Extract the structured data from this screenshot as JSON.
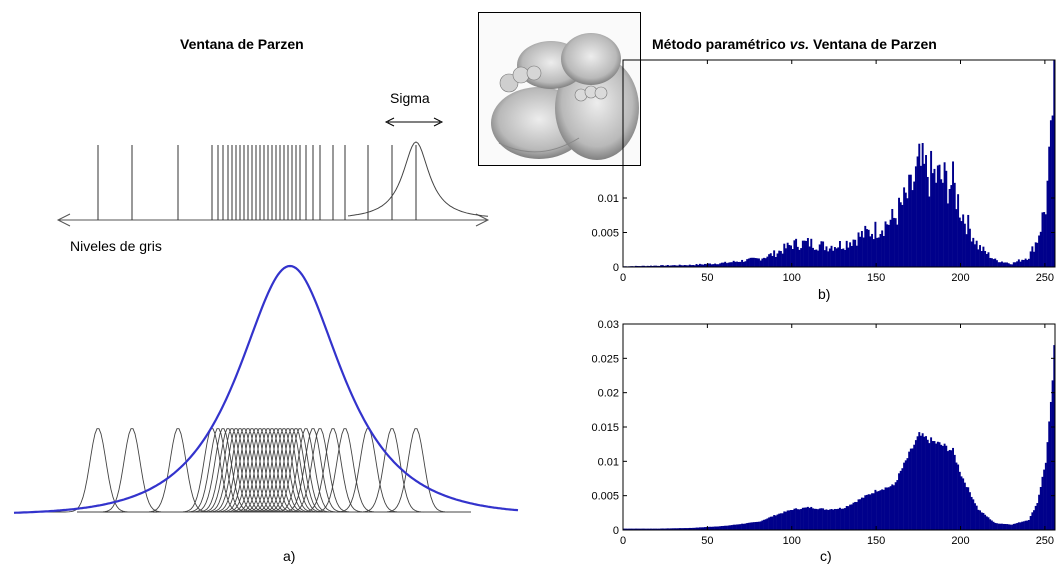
{
  "left_panel": {
    "title": "Ventana de Parzen",
    "sigma_label": "Sigma",
    "axis_label": "Niveles de gris",
    "caption": "a)",
    "samples": [
      98,
      132,
      178,
      212,
      218,
      223,
      228,
      232,
      236,
      240,
      244,
      248,
      252,
      256,
      260,
      264,
      268,
      272,
      276,
      280,
      284,
      288,
      292,
      296,
      300,
      306,
      313,
      320,
      333,
      345,
      368,
      392,
      416
    ]
  },
  "right_title": {
    "prefix": "Método paramétrico ",
    "italic": "vs.",
    "suffix": " Ventana de Parzen"
  },
  "photo": {
    "description_icon": "baby-feet-photo"
  },
  "colors": {
    "bar": "#00008b",
    "curve": "#3333cc",
    "kernel": "#444444"
  },
  "chart_data": [
    {
      "type": "bar",
      "caption": "b)",
      "xlim": [
        0,
        256
      ],
      "ylim": [
        0,
        0.03
      ],
      "xticks": [
        0,
        50,
        100,
        150,
        200,
        250
      ],
      "yticks": [
        0,
        0.005,
        0.01
      ],
      "ytick_labels": [
        "0",
        "0.005",
        "0.01"
      ],
      "anchors_x": [
        0,
        20,
        40,
        60,
        80,
        90,
        100,
        110,
        120,
        130,
        140,
        150,
        160,
        170,
        175,
        180,
        190,
        195,
        200,
        210,
        220,
        230,
        240,
        245,
        250,
        253,
        255
      ],
      "anchors_y": [
        0.0001,
        0.0002,
        0.0003,
        0.0006,
        0.0012,
        0.002,
        0.0033,
        0.0035,
        0.003,
        0.0033,
        0.0045,
        0.0055,
        0.007,
        0.011,
        0.0145,
        0.0135,
        0.0125,
        0.012,
        0.008,
        0.003,
        0.001,
        0.0005,
        0.0015,
        0.004,
        0.009,
        0.017,
        0.03
      ],
      "noise": 0.28
    },
    {
      "type": "bar",
      "caption": "c)",
      "xlim": [
        0,
        256
      ],
      "ylim": [
        0,
        0.03
      ],
      "xticks": [
        0,
        50,
        100,
        150,
        200,
        250
      ],
      "yticks": [
        0,
        0.005,
        0.01,
        0.015,
        0.02,
        0.025,
        0.03
      ],
      "ytick_labels": [
        "0",
        "0.005",
        "0.01",
        "0.015",
        "0.02",
        "0.025",
        "0.03"
      ],
      "anchors_x": [
        0,
        20,
        40,
        60,
        80,
        90,
        100,
        110,
        120,
        130,
        140,
        150,
        160,
        170,
        175,
        180,
        190,
        195,
        200,
        210,
        220,
        230,
        240,
        245,
        250,
        253,
        255
      ],
      "anchors_y": [
        0.0002,
        0.0002,
        0.0003,
        0.0006,
        0.0012,
        0.0022,
        0.003,
        0.0033,
        0.003,
        0.0032,
        0.0045,
        0.0058,
        0.0065,
        0.0115,
        0.0138,
        0.0132,
        0.0122,
        0.0115,
        0.008,
        0.003,
        0.001,
        0.0008,
        0.0015,
        0.004,
        0.01,
        0.018,
        0.026
      ],
      "noise": 0.04
    }
  ]
}
